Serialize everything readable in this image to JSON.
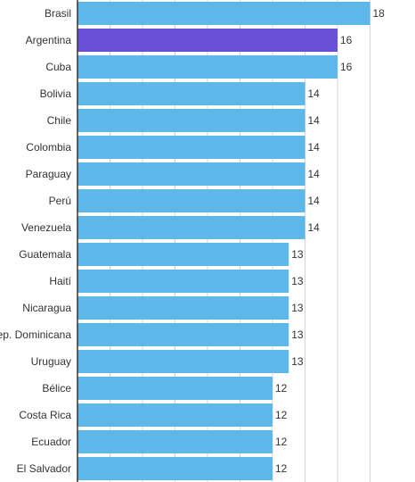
{
  "chart_data": {
    "type": "bar",
    "orientation": "horizontal",
    "categories": [
      "Brasil",
      "Argentina",
      "Cuba",
      "Bolivia",
      "Chile",
      "Colombia",
      "Paraguay",
      "Perú",
      "Venezuela",
      "Guatemala",
      "Haití",
      "Nicaragua",
      "Rep. Dominicana",
      "Uruguay",
      "Bélice",
      "Costa Rica",
      "Ecuador",
      "El Salvador"
    ],
    "values": [
      18,
      16,
      16,
      14,
      14,
      14,
      14,
      14,
      14,
      13,
      13,
      13,
      13,
      13,
      12,
      12,
      12,
      12
    ],
    "highlight_index": 1,
    "colors": {
      "bar": "#5db7e8",
      "highlight": "#6a4fd8"
    },
    "xlim": [
      0,
      18
    ],
    "grid": true,
    "title": "",
    "xlabel": "",
    "ylabel": ""
  }
}
